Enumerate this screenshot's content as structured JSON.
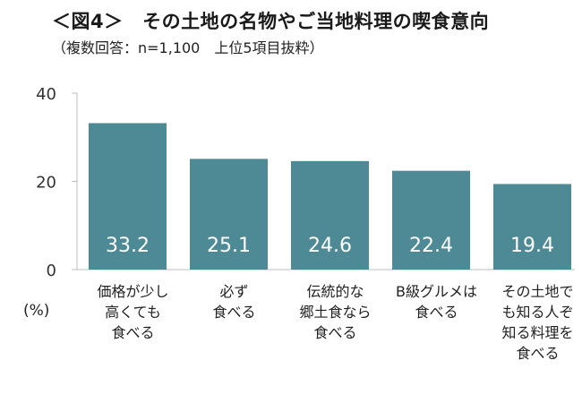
{
  "chart_data": {
    "type": "bar",
    "title": "＜図4＞　その土地の名物やご当地料理の喫食意向",
    "subtitle": "（複数回答：n=1,100　上位5項目抜粋）",
    "ylabel": "(%)",
    "ylim": [
      0,
      40
    ],
    "yticks": [
      "0",
      "20",
      "40"
    ],
    "categories": [
      [
        "価格が少し",
        "高くても",
        "食べる"
      ],
      [
        "必ず",
        "食べる"
      ],
      [
        "伝統的な",
        "郷土食なら",
        "食べる"
      ],
      [
        "B級グルメは",
        "食べる"
      ],
      [
        "その土地で",
        "も知る人ぞ",
        "知る料理を",
        "食べる"
      ]
    ],
    "values": [
      33.2,
      25.1,
      24.6,
      22.4,
      19.4
    ],
    "value_labels": [
      "33.2",
      "25.1",
      "24.6",
      "22.4",
      "19.4"
    ],
    "bar_color": "#4d8a96",
    "grid": false,
    "legend": "none"
  }
}
